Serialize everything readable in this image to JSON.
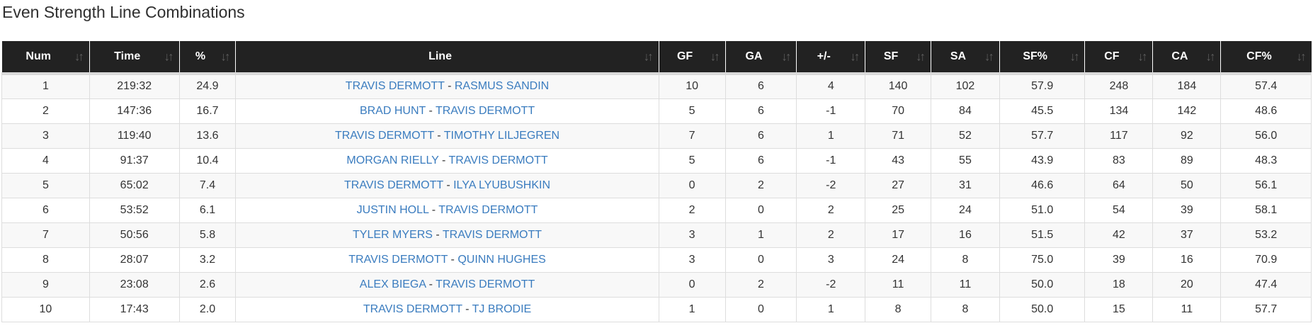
{
  "page": {
    "title": "Even Strength Line Combinations"
  },
  "colors": {
    "header_bg": "#222222",
    "header_text": "#ffffff",
    "sort_icon": "#5d5d5d",
    "row_stripe": "#f8f8f8",
    "cell_border": "#dddddd",
    "link": "#3a7cbf",
    "text": "#333333"
  },
  "icons": {
    "sort_both": "↓↑"
  },
  "table": {
    "line_separator": " - ",
    "columns": [
      {
        "key": "num",
        "label": "Num"
      },
      {
        "key": "time",
        "label": "Time"
      },
      {
        "key": "pct",
        "label": "%"
      },
      {
        "key": "line",
        "label": "Line"
      },
      {
        "key": "gf",
        "label": "GF"
      },
      {
        "key": "ga",
        "label": "GA"
      },
      {
        "key": "pm",
        "label": "+/-"
      },
      {
        "key": "sf",
        "label": "SF"
      },
      {
        "key": "sa",
        "label": "SA"
      },
      {
        "key": "sfp",
        "label": "SF%"
      },
      {
        "key": "cf",
        "label": "CF"
      },
      {
        "key": "ca",
        "label": "CA"
      },
      {
        "key": "cfp",
        "label": "CF%"
      }
    ],
    "rows": [
      {
        "num": "1",
        "time": "219:32",
        "pct": "24.9",
        "player1": "TRAVIS DERMOTT",
        "player2": "RASMUS SANDIN",
        "gf": "10",
        "ga": "6",
        "pm": "4",
        "sf": "140",
        "sa": "102",
        "sfp": "57.9",
        "cf": "248",
        "ca": "184",
        "cfp": "57.4"
      },
      {
        "num": "2",
        "time": "147:36",
        "pct": "16.7",
        "player1": "BRAD HUNT",
        "player2": "TRAVIS DERMOTT",
        "gf": "5",
        "ga": "6",
        "pm": "-1",
        "sf": "70",
        "sa": "84",
        "sfp": "45.5",
        "cf": "134",
        "ca": "142",
        "cfp": "48.6"
      },
      {
        "num": "3",
        "time": "119:40",
        "pct": "13.6",
        "player1": "TRAVIS DERMOTT",
        "player2": "TIMOTHY LILJEGREN",
        "gf": "7",
        "ga": "6",
        "pm": "1",
        "sf": "71",
        "sa": "52",
        "sfp": "57.7",
        "cf": "117",
        "ca": "92",
        "cfp": "56.0"
      },
      {
        "num": "4",
        "time": "91:37",
        "pct": "10.4",
        "player1": "MORGAN RIELLY",
        "player2": "TRAVIS DERMOTT",
        "gf": "5",
        "ga": "6",
        "pm": "-1",
        "sf": "43",
        "sa": "55",
        "sfp": "43.9",
        "cf": "83",
        "ca": "89",
        "cfp": "48.3"
      },
      {
        "num": "5",
        "time": "65:02",
        "pct": "7.4",
        "player1": "TRAVIS DERMOTT",
        "player2": "ILYA LYUBUSHKIN",
        "gf": "0",
        "ga": "2",
        "pm": "-2",
        "sf": "27",
        "sa": "31",
        "sfp": "46.6",
        "cf": "64",
        "ca": "50",
        "cfp": "56.1"
      },
      {
        "num": "6",
        "time": "53:52",
        "pct": "6.1",
        "player1": "JUSTIN HOLL",
        "player2": "TRAVIS DERMOTT",
        "gf": "2",
        "ga": "0",
        "pm": "2",
        "sf": "25",
        "sa": "24",
        "sfp": "51.0",
        "cf": "54",
        "ca": "39",
        "cfp": "58.1"
      },
      {
        "num": "7",
        "time": "50:56",
        "pct": "5.8",
        "player1": "TYLER MYERS",
        "player2": "TRAVIS DERMOTT",
        "gf": "3",
        "ga": "1",
        "pm": "2",
        "sf": "17",
        "sa": "16",
        "sfp": "51.5",
        "cf": "42",
        "ca": "37",
        "cfp": "53.2"
      },
      {
        "num": "8",
        "time": "28:07",
        "pct": "3.2",
        "player1": "TRAVIS DERMOTT",
        "player2": "QUINN HUGHES",
        "gf": "3",
        "ga": "0",
        "pm": "3",
        "sf": "24",
        "sa": "8",
        "sfp": "75.0",
        "cf": "39",
        "ca": "16",
        "cfp": "70.9"
      },
      {
        "num": "9",
        "time": "23:08",
        "pct": "2.6",
        "player1": "ALEX BIEGA",
        "player2": "TRAVIS DERMOTT",
        "gf": "0",
        "ga": "2",
        "pm": "-2",
        "sf": "11",
        "sa": "11",
        "sfp": "50.0",
        "cf": "18",
        "ca": "20",
        "cfp": "47.4"
      },
      {
        "num": "10",
        "time": "17:43",
        "pct": "2.0",
        "player1": "TRAVIS DERMOTT",
        "player2": "TJ BRODIE",
        "gf": "1",
        "ga": "0",
        "pm": "1",
        "sf": "8",
        "sa": "8",
        "sfp": "50.0",
        "cf": "15",
        "ca": "11",
        "cfp": "57.7"
      }
    ]
  }
}
